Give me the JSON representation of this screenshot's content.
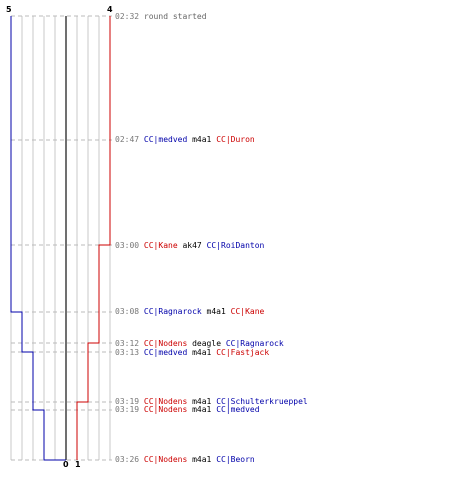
{
  "colors": {
    "blue_team": "#0000aa",
    "red_team": "#cc0000",
    "grid": "#c8c8c8",
    "center_line": "#707070",
    "dash": "#bbbbbb",
    "time_text": "#777777",
    "weapon_text": "#000000"
  },
  "scores": {
    "blue_start": "5",
    "red_start": "4",
    "blue_end": "0",
    "red_end": "1"
  },
  "timeline": {
    "blue_steps": [
      5,
      5,
      4,
      4,
      3,
      3,
      3,
      2,
      2,
      1,
      0
    ],
    "red_steps": [
      4,
      3,
      3,
      2,
      2,
      1,
      1,
      1,
      1,
      1,
      1
    ]
  },
  "events": [
    {
      "time": "02:32",
      "text": "round started"
    },
    {
      "time": "02:47",
      "killer": "CC|medved",
      "killer_team": "blue",
      "weapon": "m4a1",
      "victim": "CC|Duron",
      "victim_team": "red"
    },
    {
      "time": "03:00",
      "killer": "CC|Kane",
      "killer_team": "red",
      "weapon": "ak47",
      "victim": "CC|RoiDanton",
      "victim_team": "blue"
    },
    {
      "time": "03:08",
      "killer": "CC|Ragnarock",
      "killer_team": "blue",
      "weapon": "m4a1",
      "victim": "CC|Kane",
      "victim_team": "red"
    },
    {
      "time": "03:12",
      "killer": "CC|Nodens",
      "killer_team": "red",
      "weapon": "deagle",
      "victim": "CC|Ragnarock",
      "victim_team": "blue"
    },
    {
      "time": "03:13",
      "killer": "CC|medved",
      "killer_team": "blue",
      "weapon": "m4a1",
      "victim": "CC|Fastjack",
      "victim_team": "red"
    },
    {
      "time": "03:19",
      "killer": "CC|Nodens",
      "killer_team": "red",
      "weapon": "m4a1",
      "victim": "CC|Schulterkrueppel",
      "victim_team": "blue"
    },
    {
      "time": "03:19",
      "killer": "CC|Nodens",
      "killer_team": "red",
      "weapon": "m4a1",
      "victim": "CC|medved",
      "victim_team": "blue"
    },
    {
      "time": "03:26",
      "killer": "CC|Nodens",
      "killer_team": "red",
      "weapon": "m4a1",
      "victim": "CC|Beorn",
      "victim_team": "blue"
    }
  ]
}
